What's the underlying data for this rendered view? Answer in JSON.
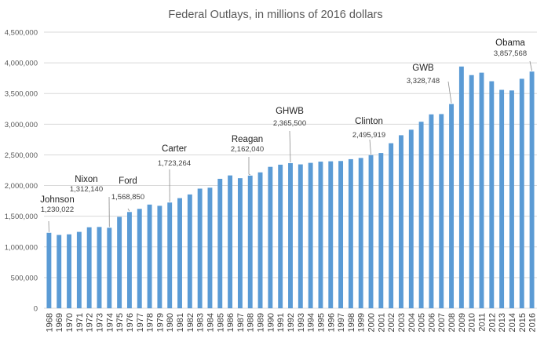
{
  "chart_data": {
    "type": "bar",
    "title": "Federal Outlays, in millions of 2016 dollars",
    "xlabel": "",
    "ylabel": "",
    "ylim": [
      0,
      4500000
    ],
    "yticks": [
      "0",
      "500,000",
      "1,000,000",
      "1,500,000",
      "2,000,000",
      "2,500,000",
      "3,000,000",
      "3,500,000",
      "4,000,000",
      "4,500,000"
    ],
    "ytick_values": [
      0,
      500000,
      1000000,
      1500000,
      2000000,
      2500000,
      3000000,
      3500000,
      4000000,
      4500000
    ],
    "grid": true,
    "bar_color": "#5b9bd5",
    "categories": [
      "1968",
      "1969",
      "1970",
      "1971",
      "1972",
      "1973",
      "1974",
      "1975",
      "1976",
      "1977",
      "1978",
      "1979",
      "1980",
      "1981",
      "1982",
      "1983",
      "1984",
      "1985",
      "1986",
      "1987",
      "1988",
      "1989",
      "1990",
      "1991",
      "1992",
      "1993",
      "1994",
      "1995",
      "1996",
      "1997",
      "1998",
      "1999",
      "2000",
      "2001",
      "2002",
      "2003",
      "2004",
      "2005",
      "2006",
      "2007",
      "2008",
      "2009",
      "2010",
      "2011",
      "2012",
      "2013",
      "2014",
      "2015",
      "2016"
    ],
    "values": [
      1230022,
      1195000,
      1205000,
      1245000,
      1320000,
      1325000,
      1312140,
      1490000,
      1568850,
      1620000,
      1690000,
      1670000,
      1723264,
      1795000,
      1855000,
      1950000,
      1965000,
      2110000,
      2165000,
      2120000,
      2162040,
      2215000,
      2305000,
      2340000,
      2365500,
      2345000,
      2370000,
      2390000,
      2395000,
      2400000,
      2430000,
      2450000,
      2495919,
      2530000,
      2690000,
      2820000,
      2910000,
      3040000,
      3160000,
      3165000,
      3328748,
      3940000,
      3800000,
      3840000,
      3700000,
      3560000,
      3550000,
      3740000,
      3857568
    ],
    "annotations": [
      {
        "name": "Johnson",
        "value_label": "1,230,022",
        "category": "1968"
      },
      {
        "name": "Nixon",
        "value_label": "1,312,140",
        "category": "1974"
      },
      {
        "name": "Ford",
        "value_label": "1,568,850",
        "category": "1976"
      },
      {
        "name": "Carter",
        "value_label": "1,723,264",
        "category": "1980"
      },
      {
        "name": "Reagan",
        "value_label": "2,162,040",
        "category": "1988"
      },
      {
        "name": "GHWB",
        "value_label": "2,365,500",
        "category": "1992"
      },
      {
        "name": "Clinton",
        "value_label": "2,495,919",
        "category": "2000"
      },
      {
        "name": "GWB",
        "value_label": "3,328,748",
        "category": "2008"
      },
      {
        "name": "Obama",
        "value_label": "3,857,568",
        "category": "2016"
      }
    ]
  }
}
